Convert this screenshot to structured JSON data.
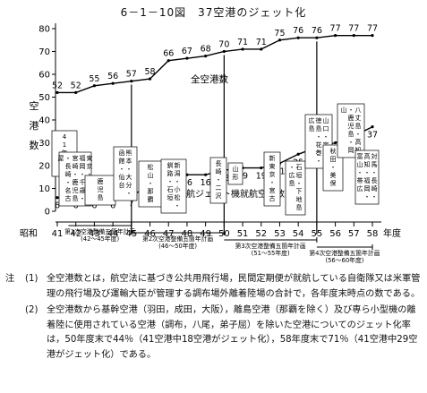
{
  "title": "6－1－10図　37空港のジェット化",
  "chart_data": {
    "type": "line",
    "x_era_label": "昭和",
    "x_unit": "年度",
    "x": [
      41,
      42,
      43,
      44,
      45,
      46,
      47,
      48,
      49,
      50,
      51,
      52,
      53,
      54,
      55,
      56,
      57,
      58
    ],
    "ylim": [
      0,
      80
    ],
    "yticks": [
      0,
      10,
      20,
      30,
      40,
      50,
      60,
      70,
      80
    ],
    "ylabel": "空港数",
    "grid": false,
    "series": [
      {
        "name": "全空港数",
        "values": [
          52,
          52,
          55,
          56,
          57,
          58,
          66,
          67,
          68,
          70,
          71,
          71,
          75,
          76,
          76,
          77,
          77,
          77
        ],
        "labels": [
          "52",
          "52",
          "55",
          "56",
          "57",
          "58",
          "66",
          "67",
          "68",
          "70",
          "71",
          "71",
          "75",
          "76",
          "76",
          "77",
          "77",
          "77"
        ]
      },
      {
        "name": "民航ジェット機就航空港数",
        "values": [
          6,
          6,
          6,
          6,
          7,
          11,
          13,
          16,
          16,
          18,
          19,
          19,
          21,
          25,
          28,
          30,
          33,
          37
        ],
        "labels": [
          "6",
          "6",
          "6",
          "6",
          "7",
          "11",
          "13",
          "16",
          "16",
          "18",
          "19",
          "19",
          "21",
          "25",
          "28",
          "30",
          "33",
          "37"
        ]
      }
    ],
    "annotations": [
      "(41年まで)",
      "東京・大阪・福岡・千歳・宮崎・鹿児島・長崎・名古屋",
      "(鹿児島)",
      "熊本・大分・函館・仙台",
      "(松山・那覇)",
      "(新潟・小松・釧路・石垣)",
      "(長崎・二沢)",
      "(山形)",
      "(新東京・宮古)",
      "(石垣・下地島・広島)",
      "(山口・宇部・徳島・花巻・広島)",
      "(秋田・美保)",
      "(八丈島・高知・鹿児島・岡山)",
      "(対馬・長崎・高知・福岡・富山・帯広)"
    ],
    "plans": [
      {
        "label": "第1次空港整備五箇年計画",
        "years": "(42～45年度)"
      },
      {
        "label": "第2次空港整備五箇年計画",
        "years": "(46～50年度)"
      },
      {
        "label": "第3次空港整備五箇年計画",
        "years": "(51～55年度)"
      },
      {
        "label": "第4次空港整備五箇年計画",
        "years": "(56～60年度)"
      }
    ]
  },
  "notes": [
    {
      "label": "注",
      "num": "(1)",
      "text": "全空港数とは，航空法に基づき公共用飛行場，民間定期便が就航している自衛隊又は米軍管理の飛行場及び運輸大臣が管理する調布場外離着陸場の合計で，各年度末時点の数である。"
    },
    {
      "label": "",
      "num": "(2)",
      "text": "全空港数から基幹空港（羽田，成田，大阪），離島空港（那覇を除く）及び専ら小型機の離着陸に使用されている空港（調布，八尾，弟子屈）を除いた空港についてのジェット化率は，50年度末で44％（41空港中18空港がジェット化），58年度末で71％（41空港中29空港がジェット化）である。"
    }
  ]
}
